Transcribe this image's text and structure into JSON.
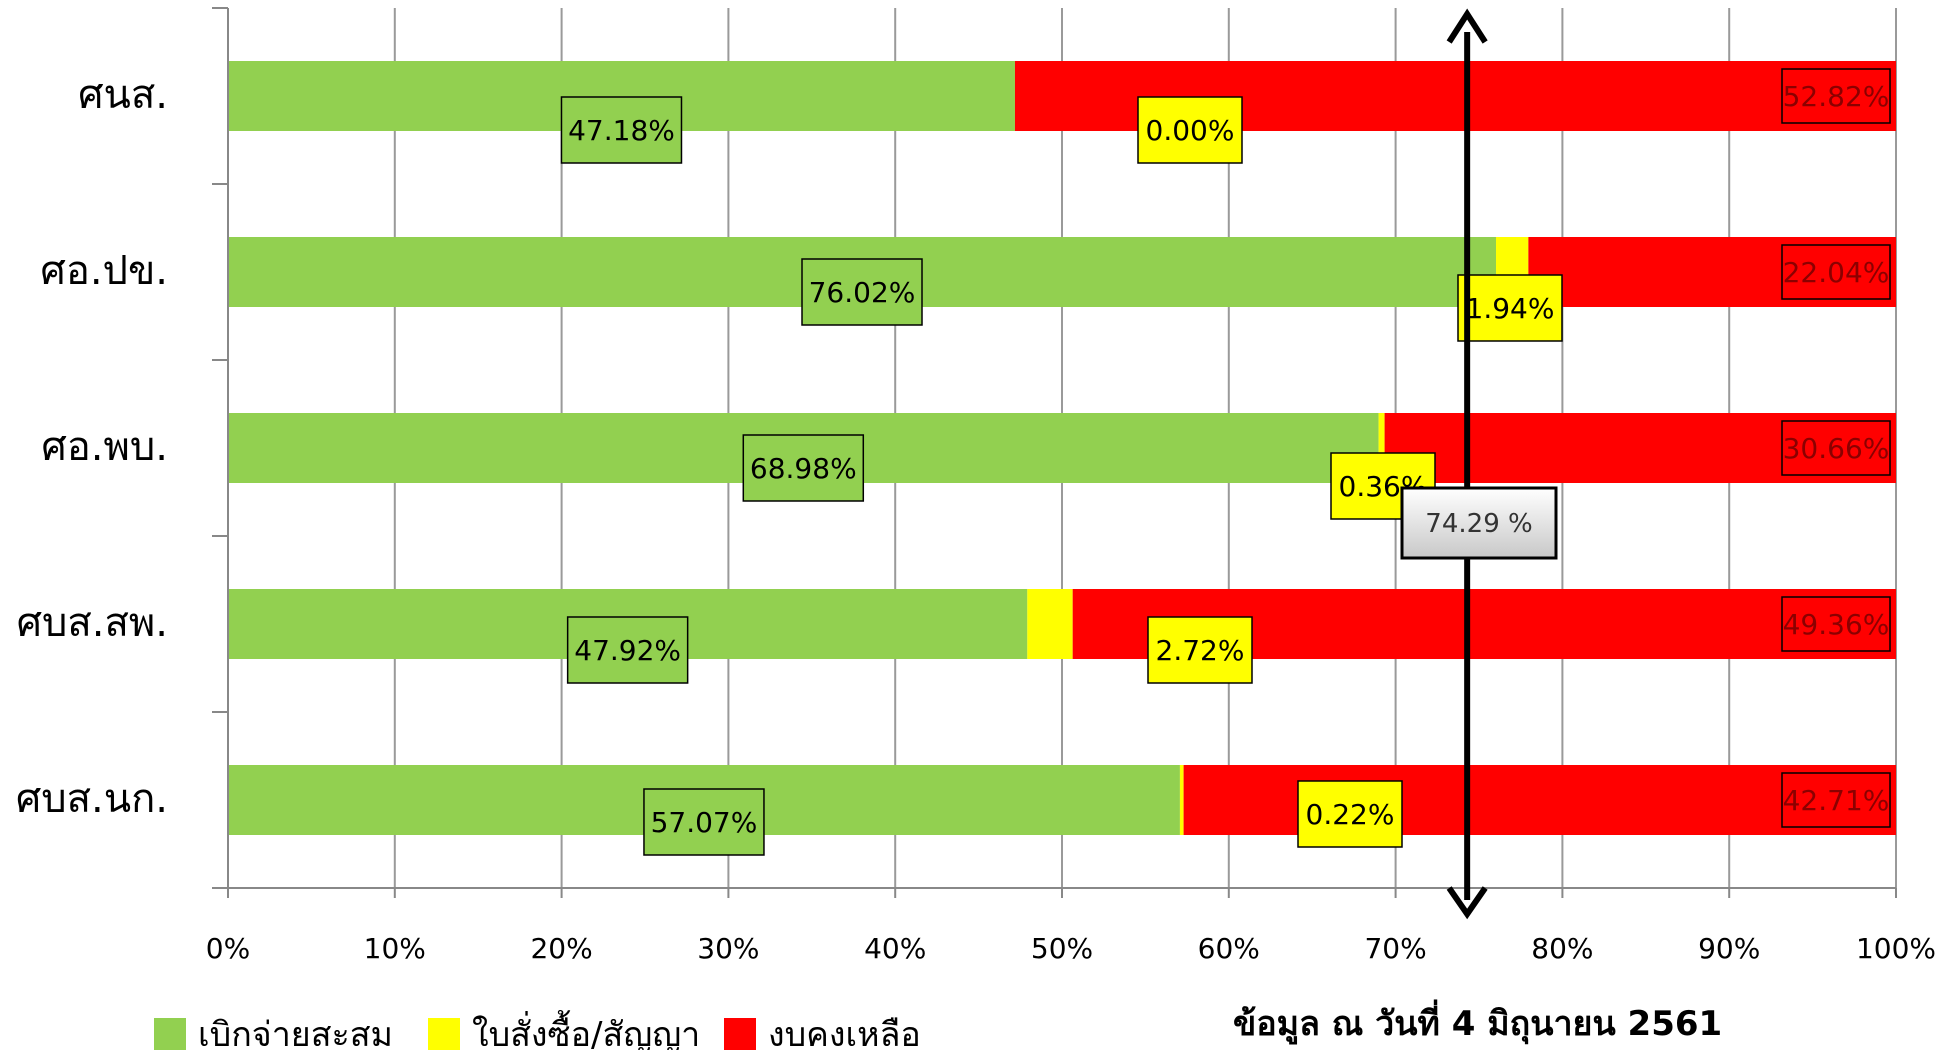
{
  "chart_data": {
    "type": "bar",
    "orientation": "horizontal",
    "stacked": "percent",
    "categories": [
      "ศนส.",
      "ศอ.ปข.",
      "ศอ.พบ.",
      "ศบส.สพ.",
      "ศบส.นก."
    ],
    "series": [
      {
        "name": "เบิกจ่ายสะสม",
        "color": "#92D050",
        "values": [
          47.18,
          76.02,
          68.98,
          47.92,
          57.07
        ],
        "labels": [
          "47.18%",
          "76.02%",
          "68.98%",
          "47.92%",
          "57.07%"
        ]
      },
      {
        "name": "ใบสั่งซื้อ/สัญญา",
        "color": "#FFFF00",
        "values": [
          0.0,
          1.94,
          0.36,
          2.72,
          0.22
        ],
        "labels": [
          "0.00%",
          "1.94%",
          "0.36%",
          "2.72%",
          "0.22%"
        ]
      },
      {
        "name": "งบคงเหลือ",
        "color": "#FF0000",
        "values": [
          52.82,
          22.04,
          30.66,
          49.36,
          42.71
        ],
        "labels": [
          "52.82%",
          "22.04%",
          "30.66%",
          "49.36%",
          "42.71%"
        ]
      }
    ],
    "xlim": [
      0,
      100
    ],
    "xticks": [
      "0%",
      "10%",
      "20%",
      "30%",
      "40%",
      "50%",
      "60%",
      "70%",
      "80%",
      "90%",
      "100%"
    ],
    "grid": true,
    "legend_position": "bottom-left",
    "target_line": {
      "value": 74.29,
      "label": "74.29 %"
    }
  },
  "note": "ข้อมูล ณ วันที่ 4 มิถุนายน 2561"
}
